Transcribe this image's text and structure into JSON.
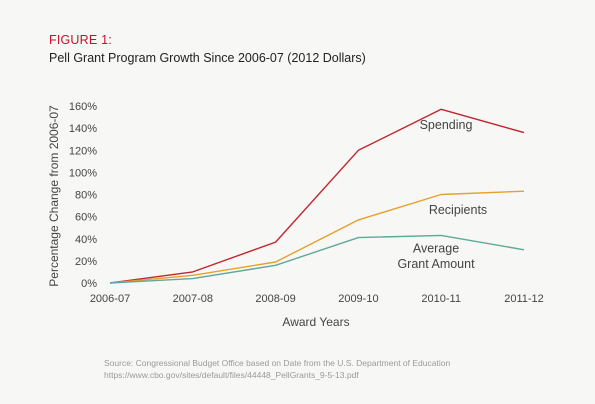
{
  "figure_label": "FIGURE 1:",
  "title": "Pell Grant Program Growth Since 2006-07 (2012 Dollars)",
  "source_line1": "Source: Congressional Budget Office based on Date from the U.S. Department of Education",
  "source_line2": "https://www.cbo.gov/sites/default/files/44448_PellGrants_9-5-13.pdf",
  "chart_data": {
    "type": "line",
    "title": "Pell Grant Program Growth Since 2006-07 (2012 Dollars)",
    "xlabel": "Award Years",
    "ylabel": "Percentage Change from 2006-07",
    "categories": [
      "2006-07",
      "2007-08",
      "2008-09",
      "2009-10",
      "2010-11",
      "2011-12"
    ],
    "ylim": [
      0,
      160
    ],
    "yticks": [
      "0%",
      "20%",
      "40%",
      "60%",
      "80%",
      "100%",
      "120%",
      "140%",
      "160%"
    ],
    "grid": false,
    "series": [
      {
        "name": "Spending",
        "color": "#c0262d",
        "values": [
          0,
          10,
          37,
          120,
          157,
          136
        ]
      },
      {
        "name": "Recipients",
        "color": "#e8a02a",
        "values": [
          0,
          7,
          19,
          57,
          80,
          83
        ]
      },
      {
        "name": "Average Grant Amount",
        "color": "#5fa89a",
        "values": [
          0,
          4,
          16,
          41,
          43,
          30
        ]
      }
    ],
    "annotations": [
      "Spending",
      "Recipients",
      "Average",
      "Grant Amount"
    ]
  }
}
